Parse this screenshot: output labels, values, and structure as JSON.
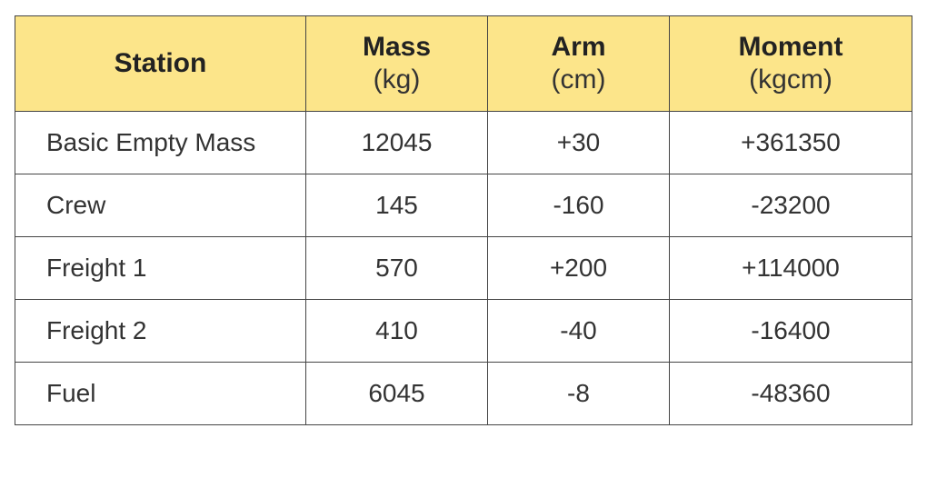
{
  "table": {
    "headers": [
      {
        "main": "Station",
        "unit": ""
      },
      {
        "main": "Mass",
        "unit": "(kg)"
      },
      {
        "main": "Arm",
        "unit": "(cm)"
      },
      {
        "main": "Moment",
        "unit": "(kgcm)"
      }
    ],
    "rows": [
      {
        "station": "Basic Empty Mass",
        "mass": "12045",
        "arm": "+30",
        "moment": "+361350"
      },
      {
        "station": "Crew",
        "mass": "145",
        "arm": "-160",
        "moment": "-23200"
      },
      {
        "station": "Freight 1",
        "mass": "570",
        "arm": "+200",
        "moment": "+114000"
      },
      {
        "station": "Freight 2",
        "mass": "410",
        "arm": "-40",
        "moment": "-16400"
      },
      {
        "station": "Fuel",
        "mass": "6045",
        "arm": "-8",
        "moment": "-48360"
      }
    ]
  },
  "colors": {
    "header_background": "#fce58a",
    "border": "#444444",
    "text": "#222222"
  }
}
